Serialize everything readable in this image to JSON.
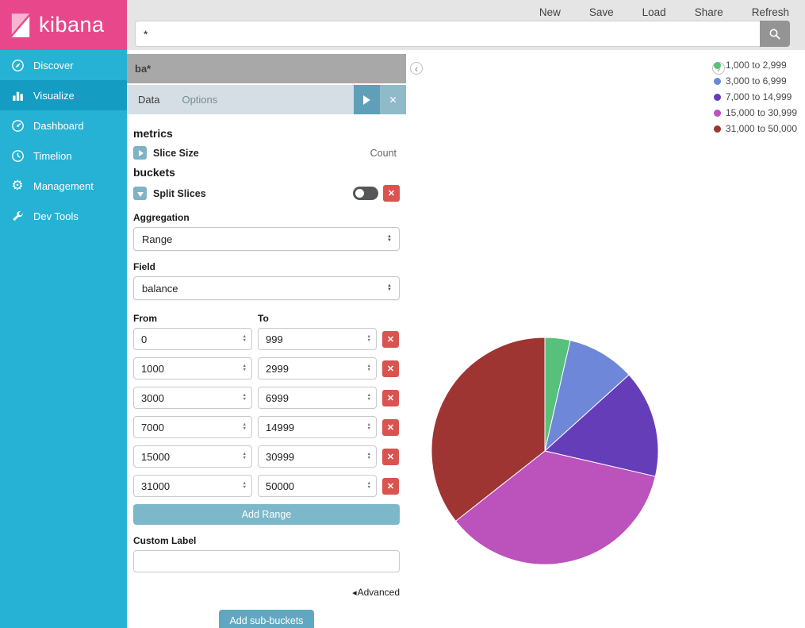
{
  "brand": {
    "name": "kibana"
  },
  "topnav": {
    "items": [
      "New",
      "Save",
      "Load",
      "Share",
      "Refresh"
    ]
  },
  "search": {
    "value": "*"
  },
  "sidebar": {
    "active": "Visualize",
    "items": [
      {
        "label": "Discover",
        "icon": "discover-icon"
      },
      {
        "label": "Visualize",
        "icon": "visualize-icon"
      },
      {
        "label": "Dashboard",
        "icon": "dashboard-icon"
      },
      {
        "label": "Timelion",
        "icon": "timelion-icon"
      },
      {
        "label": "Management",
        "icon": "management-icon"
      },
      {
        "label": "Dev Tools",
        "icon": "dev-tools-icon"
      }
    ]
  },
  "editor": {
    "title": "ba*",
    "tabs": {
      "data": "Data",
      "options": "Options"
    },
    "metrics_heading": "metrics",
    "slice_size_label": "Slice Size",
    "slice_size_value": "Count",
    "buckets_heading": "buckets",
    "split_slices_label": "Split Slices",
    "aggregation_label": "Aggregation",
    "aggregation_value": "Range",
    "field_label": "Field",
    "field_value": "balance",
    "from_label": "From",
    "to_label": "To",
    "ranges": [
      {
        "from": "0",
        "to": "999"
      },
      {
        "from": "1000",
        "to": "2999"
      },
      {
        "from": "3000",
        "to": "6999"
      },
      {
        "from": "7000",
        "to": "14999"
      },
      {
        "from": "15000",
        "to": "30999"
      },
      {
        "from": "31000",
        "to": "50000"
      }
    ],
    "add_range_label": "Add Range",
    "custom_label_label": "Custom Label",
    "custom_label_value": "",
    "advanced_label": "Advanced",
    "add_sub_buckets_label": "Add sub-buckets"
  },
  "chart_data": {
    "type": "pie",
    "metric": "Count",
    "aggregation": "Range on balance",
    "legend_position": "top-right",
    "slices": [
      {
        "label": "1,000 to 2,999",
        "color": "#57c17b",
        "percent": 3.6
      },
      {
        "label": "3,000 to 6,999",
        "color": "#6f87d8",
        "percent": 9.7
      },
      {
        "label": "7,000 to 14,999",
        "color": "#663db8",
        "percent": 15.3
      },
      {
        "label": "15,000 to 30,999",
        "color": "#bc52bc",
        "percent": 35.8
      },
      {
        "label": "31,000 to 50,000",
        "color": "#9e3533",
        "percent": 35.6
      }
    ]
  },
  "colors": {
    "brand_pink": "#e8488b",
    "sidebar_teal": "#26b2d5",
    "sidebar_active": "#149cc2",
    "danger_red": "#d9534f",
    "button_teal": "#7cb7ca"
  }
}
